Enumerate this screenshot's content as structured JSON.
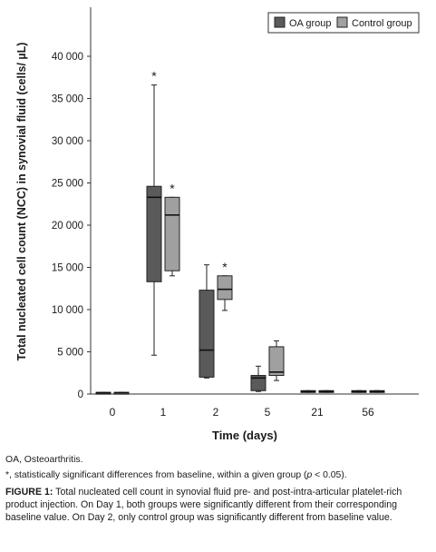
{
  "chart_data": {
    "type": "boxplot",
    "xlabel": "Time (days)",
    "ylabel": "Total nucleated cell count (NCC) in synovial fluid (cells/ µL)",
    "ylim": [
      0,
      40000
    ],
    "yticks": [
      0,
      5000,
      10000,
      15000,
      20000,
      25000,
      30000,
      35000,
      40000
    ],
    "ytick_labels": [
      "0",
      "5 000",
      "10 000",
      "15 000",
      "20 000",
      "25 000",
      "30 000",
      "35 000",
      "40 000"
    ],
    "categories": [
      "0",
      "1",
      "2",
      "5",
      "21",
      "56"
    ],
    "grid": false,
    "legend_position": "top-right",
    "series": [
      {
        "name": "OA group",
        "color": "#5a5a5a",
        "boxes": [
          {
            "min": 100,
            "q1": 100,
            "median": 150,
            "q3": 200,
            "max": 200,
            "significant": false
          },
          {
            "min": 4600,
            "q1": 13300,
            "median": 23300,
            "q3": 24600,
            "max": 36600,
            "significant": true
          },
          {
            "min": 1900,
            "q1": 2000,
            "median": 5200,
            "q3": 12300,
            "max": 15300,
            "significant": false
          },
          {
            "min": 300,
            "q1": 400,
            "median": 1900,
            "q3": 2200,
            "max": 3300,
            "significant": false
          },
          {
            "min": 200,
            "q1": 200,
            "median": 300,
            "q3": 400,
            "max": 400,
            "significant": false
          },
          {
            "min": 200,
            "q1": 200,
            "median": 300,
            "q3": 400,
            "max": 400,
            "significant": false
          }
        ]
      },
      {
        "name": "Control group",
        "color": "#a0a0a0",
        "boxes": [
          {
            "min": 100,
            "q1": 100,
            "median": 150,
            "q3": 200,
            "max": 200,
            "significant": false
          },
          {
            "min": 14000,
            "q1": 14600,
            "median": 21200,
            "q3": 23300,
            "max": 23300,
            "significant": true
          },
          {
            "min": 9900,
            "q1": 11200,
            "median": 12400,
            "q3": 14000,
            "max": 14000,
            "significant": true
          },
          {
            "min": 1600,
            "q1": 2200,
            "median": 2600,
            "q3": 5600,
            "max": 6300,
            "significant": false
          },
          {
            "min": 200,
            "q1": 200,
            "median": 300,
            "q3": 400,
            "max": 400,
            "significant": false
          },
          {
            "min": 200,
            "q1": 200,
            "median": 300,
            "q3": 400,
            "max": 400,
            "significant": false
          }
        ]
      }
    ],
    "significance_marker": "*"
  },
  "notes": {
    "abbreviation": "OA, Osteoarthritis.",
    "star_symbol": "*",
    "star_text_a": ", statistically significant differences from baseline, within a given group (",
    "star_p": "p",
    "star_text_b": " < 0.05)."
  },
  "caption": {
    "label": "FIGURE 1:",
    "text": " Total nucleated cell count in synovial fluid pre- and post-intra-articular platelet-rich product injection. On Day 1, both groups were significantly different from their corresponding baseline value. On Day 2, only control group was significantly different from baseline value."
  }
}
